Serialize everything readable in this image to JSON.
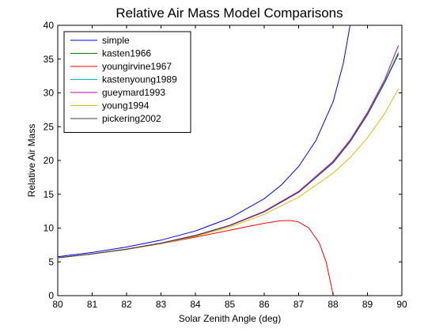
{
  "chart_data": {
    "type": "line",
    "title": "Relative Air Mass Model Comparisons",
    "xlabel": "Solar Zenith Angle (deg)",
    "ylabel": "Relative Air Mass",
    "xlim": [
      80,
      90
    ],
    "ylim": [
      0,
      40
    ],
    "xticks": [
      80,
      81,
      82,
      83,
      84,
      85,
      86,
      87,
      88,
      89,
      90
    ],
    "yticks": [
      0,
      5,
      10,
      15,
      20,
      25,
      30,
      35,
      40
    ],
    "grid": false,
    "legend_position": "top-left",
    "series": [
      {
        "name": "simple",
        "color": "#0000ff",
        "x": [
          80,
          81,
          82,
          83,
          84,
          85,
          86,
          86.5,
          87,
          87.5,
          88,
          88.3,
          88.6
        ],
        "y": [
          5.76,
          6.39,
          7.19,
          8.21,
          9.57,
          11.47,
          14.34,
          16.39,
          19.11,
          22.93,
          28.65,
          34.38,
          42.98
        ]
      },
      {
        "name": "kasten1966",
        "color": "#008000",
        "x": [
          80,
          81,
          82,
          83,
          84,
          85,
          86,
          87,
          88,
          88.5,
          89,
          89.5,
          89.9
        ],
        "y": [
          5.6,
          6.18,
          6.88,
          7.77,
          8.9,
          10.4,
          12.44,
          15.36,
          19.79,
          22.9,
          26.96,
          31.7,
          35.7
        ]
      },
      {
        "name": "youngirvine1967",
        "color": "#ff0000",
        "x": [
          80,
          81,
          82,
          83,
          84,
          85,
          85.5,
          86,
          86.5,
          86.8,
          87,
          87.3,
          87.6,
          87.8,
          88
        ],
        "y": [
          5.6,
          6.16,
          6.84,
          7.68,
          8.65,
          9.69,
          10.2,
          10.7,
          11.1,
          11.1,
          10.9,
          10.0,
          7.8,
          5.0,
          0.2
        ]
      },
      {
        "name": "kastenyoung1989",
        "color": "#00bfbf",
        "x": [
          80,
          81,
          82,
          83,
          84,
          85,
          86,
          87,
          88,
          88.5,
          89,
          89.5,
          89.9
        ],
        "y": [
          5.6,
          6.18,
          6.88,
          7.77,
          8.9,
          10.39,
          12.44,
          15.36,
          19.79,
          22.96,
          26.96,
          31.7,
          36.0
        ]
      },
      {
        "name": "gueymard1993",
        "color": "#bf00bf",
        "x": [
          80,
          81,
          82,
          83,
          84,
          85,
          86,
          87,
          88,
          88.5,
          89,
          89.5,
          89.9
        ],
        "y": [
          5.6,
          6.18,
          6.89,
          7.78,
          8.91,
          10.41,
          12.48,
          15.42,
          19.87,
          23.06,
          27.1,
          31.95,
          37.0
        ]
      },
      {
        "name": "young1994",
        "color": "#dfbf00",
        "x": [
          80,
          81,
          82,
          83,
          84,
          85,
          86,
          87,
          88,
          88.5,
          89,
          89.5,
          89.9
        ],
        "y": [
          5.59,
          6.16,
          6.85,
          7.7,
          8.77,
          10.16,
          12.02,
          14.57,
          18.12,
          20.46,
          23.33,
          26.95,
          30.6
        ]
      },
      {
        "name": "pickering2002",
        "color": "#404040",
        "x": [
          80,
          81,
          82,
          83,
          84,
          85,
          86,
          87,
          88,
          88.5,
          89,
          89.5,
          89.9
        ],
        "y": [
          5.6,
          6.18,
          6.88,
          7.76,
          8.88,
          10.36,
          12.39,
          15.27,
          19.64,
          22.79,
          26.76,
          31.5,
          35.8
        ]
      }
    ]
  }
}
